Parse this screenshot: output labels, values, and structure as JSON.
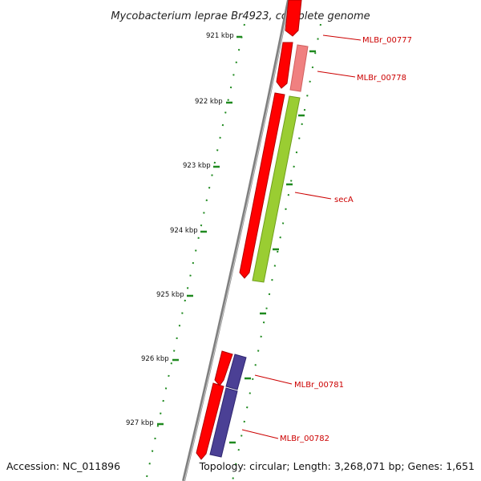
{
  "title": "Mycobacterium leprae Br4923, complete genome",
  "footer": {
    "accession": "Accession: NC_011896",
    "summary": "Topology: circular; Length: 3,268,071 bp; Genes: 1,651"
  },
  "ticks": [
    "921 kbp",
    "922 kbp",
    "923 kbp",
    "924 kbp",
    "925 kbp",
    "926 kbp",
    "927 kbp"
  ],
  "genes": [
    "MLBr_00777",
    "MLBr_00778",
    "secA",
    "MLBr_00781",
    "MLBr_00782"
  ],
  "colors": {
    "backbone": "#7f7f7f",
    "forward_gene": "#ff0000",
    "mlbr_00778": "#f08080",
    "seca": "#9acd32",
    "mlbr_00781_00782": "#4b4095",
    "tick": "#1f8a1f",
    "label_text": "#cc0000"
  }
}
